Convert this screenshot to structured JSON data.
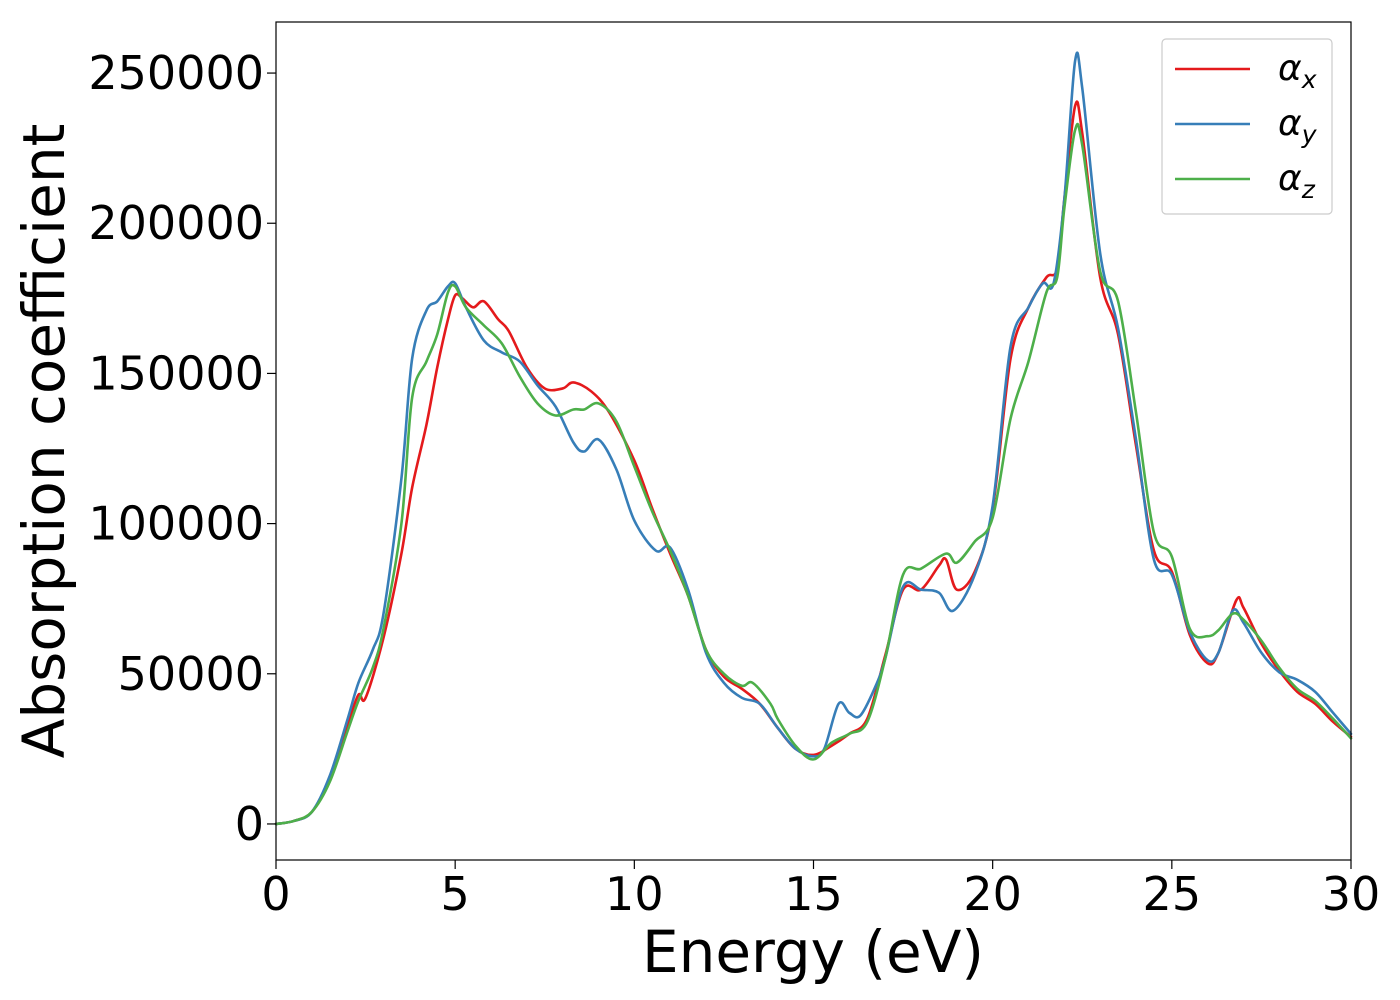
{
  "chart_data": {
    "type": "line",
    "title": "",
    "xlabel": "Energy (eV)",
    "ylabel": "Absorption coefficient",
    "xlim": [
      0,
      30
    ],
    "ylim": [
      -12000,
      267000
    ],
    "x_ticks": [
      0,
      5,
      10,
      15,
      20,
      25,
      30
    ],
    "y_ticks": [
      0,
      50000,
      100000,
      150000,
      200000,
      250000
    ],
    "x_tick_labels": [
      "0",
      "5",
      "10",
      "15",
      "20",
      "25",
      "30"
    ],
    "y_tick_labels": [
      "0",
      "50000",
      "100000",
      "150000",
      "200000",
      "250000"
    ],
    "grid": false,
    "legend_position": "top-right",
    "series": [
      {
        "name": "αx",
        "symbol": "α",
        "subscript": "x",
        "color": "#e41a1c",
        "points": [
          [
            0,
            0
          ],
          [
            0.5,
            1000
          ],
          [
            1,
            4000
          ],
          [
            1.5,
            15000
          ],
          [
            2,
            33000
          ],
          [
            2.3,
            43000
          ],
          [
            2.5,
            42000
          ],
          [
            3,
            62000
          ],
          [
            3.5,
            90000
          ],
          [
            3.8,
            112000
          ],
          [
            4.2,
            133000
          ],
          [
            4.5,
            152000
          ],
          [
            4.8,
            168000
          ],
          [
            5,
            176000
          ],
          [
            5.2,
            175000
          ],
          [
            5.5,
            172000
          ],
          [
            5.8,
            174000
          ],
          [
            6.2,
            168000
          ],
          [
            6.5,
            164000
          ],
          [
            7,
            152000
          ],
          [
            7.5,
            145000
          ],
          [
            8,
            145000
          ],
          [
            8.3,
            147000
          ],
          [
            8.8,
            144000
          ],
          [
            9.3,
            137000
          ],
          [
            10,
            121000
          ],
          [
            10.5,
            105000
          ],
          [
            11,
            90000
          ],
          [
            11.5,
            76000
          ],
          [
            12,
            58000
          ],
          [
            12.5,
            49000
          ],
          [
            13,
            45000
          ],
          [
            13.5,
            40000
          ],
          [
            14,
            32000
          ],
          [
            14.5,
            25000
          ],
          [
            15,
            23000
          ],
          [
            15.5,
            26000
          ],
          [
            16,
            30000
          ],
          [
            16.5,
            35000
          ],
          [
            17,
            56000
          ],
          [
            17.5,
            78000
          ],
          [
            18,
            78000
          ],
          [
            18.5,
            86000
          ],
          [
            18.7,
            88000
          ],
          [
            19,
            78000
          ],
          [
            19.5,
            84000
          ],
          [
            20,
            105000
          ],
          [
            20.5,
            155000
          ],
          [
            21,
            172000
          ],
          [
            21.5,
            182000
          ],
          [
            21.8,
            185000
          ],
          [
            22,
            208000
          ],
          [
            22.3,
            239000
          ],
          [
            22.5,
            230000
          ],
          [
            23,
            182000
          ],
          [
            23.5,
            163000
          ],
          [
            24,
            126000
          ],
          [
            24.5,
            91000
          ],
          [
            25,
            84000
          ],
          [
            25.5,
            63000
          ],
          [
            26,
            53500
          ],
          [
            26.3,
            57000
          ],
          [
            26.8,
            74500
          ],
          [
            27,
            72000
          ],
          [
            27.5,
            60000
          ],
          [
            28,
            51000
          ],
          [
            28.5,
            44000
          ],
          [
            29,
            40000
          ],
          [
            29.5,
            34000
          ],
          [
            30,
            29000
          ]
        ]
      },
      {
        "name": "αy",
        "symbol": "α",
        "subscript": "y",
        "color": "#377eb8",
        "points": [
          [
            0,
            0
          ],
          [
            0.5,
            1000
          ],
          [
            1,
            4000
          ],
          [
            1.5,
            16000
          ],
          [
            2,
            35000
          ],
          [
            2.3,
            47000
          ],
          [
            2.7,
            58000
          ],
          [
            3,
            70000
          ],
          [
            3.5,
            115000
          ],
          [
            3.8,
            155000
          ],
          [
            4.2,
            171000
          ],
          [
            4.5,
            174000
          ],
          [
            4.8,
            179000
          ],
          [
            5,
            180000
          ],
          [
            5.3,
            172000
          ],
          [
            5.8,
            161000
          ],
          [
            6.3,
            157000
          ],
          [
            6.8,
            154000
          ],
          [
            7.3,
            146000
          ],
          [
            7.8,
            139000
          ],
          [
            8.3,
            127000
          ],
          [
            8.6,
            124000
          ],
          [
            9,
            128000
          ],
          [
            9.5,
            118000
          ],
          [
            10,
            101000
          ],
          [
            10.6,
            91000
          ],
          [
            11,
            92000
          ],
          [
            11.5,
            78000
          ],
          [
            12,
            57000
          ],
          [
            12.5,
            47000
          ],
          [
            13,
            42000
          ],
          [
            13.5,
            40000
          ],
          [
            14,
            32000
          ],
          [
            14.5,
            25000
          ],
          [
            15,
            22500
          ],
          [
            15.3,
            25000
          ],
          [
            15.7,
            40000
          ],
          [
            16,
            37000
          ],
          [
            16.3,
            36000
          ],
          [
            16.7,
            45000
          ],
          [
            17,
            55000
          ],
          [
            17.5,
            79000
          ],
          [
            18,
            78000
          ],
          [
            18.5,
            77000
          ],
          [
            18.9,
            71000
          ],
          [
            19.5,
            83000
          ],
          [
            20,
            106000
          ],
          [
            20.5,
            159000
          ],
          [
            21,
            172000
          ],
          [
            21.4,
            180000
          ],
          [
            21.7,
            180000
          ],
          [
            22,
            208000
          ],
          [
            22.3,
            254000
          ],
          [
            22.5,
            245000
          ],
          [
            23,
            190000
          ],
          [
            23.5,
            165000
          ],
          [
            24,
            128000
          ],
          [
            24.5,
            88000
          ],
          [
            25,
            83000
          ],
          [
            25.5,
            64000
          ],
          [
            26,
            54500
          ],
          [
            26.3,
            57000
          ],
          [
            26.7,
            71000
          ],
          [
            27,
            67000
          ],
          [
            27.5,
            57000
          ],
          [
            28,
            50500
          ],
          [
            28.5,
            48000
          ],
          [
            29,
            44000
          ],
          [
            29.5,
            37000
          ],
          [
            30,
            30000
          ]
        ]
      },
      {
        "name": "αz",
        "symbol": "α",
        "subscript": "z",
        "color": "#4daf4a",
        "points": [
          [
            0,
            0
          ],
          [
            0.5,
            1000
          ],
          [
            1,
            4000
          ],
          [
            1.5,
            14000
          ],
          [
            2,
            31000
          ],
          [
            2.3,
            41000
          ],
          [
            2.7,
            52000
          ],
          [
            3,
            65000
          ],
          [
            3.5,
            100000
          ],
          [
            3.8,
            142000
          ],
          [
            4.2,
            154000
          ],
          [
            4.5,
            163000
          ],
          [
            4.8,
            177000
          ],
          [
            5,
            179000
          ],
          [
            5.3,
            172000
          ],
          [
            5.8,
            166000
          ],
          [
            6.3,
            160000
          ],
          [
            6.8,
            149000
          ],
          [
            7.3,
            140000
          ],
          [
            7.8,
            136000
          ],
          [
            8.3,
            138000
          ],
          [
            8.6,
            138000
          ],
          [
            9,
            140000
          ],
          [
            9.5,
            134000
          ],
          [
            10,
            119000
          ],
          [
            10.5,
            104000
          ],
          [
            11,
            91000
          ],
          [
            11.5,
            76000
          ],
          [
            12,
            58000
          ],
          [
            12.5,
            50000
          ],
          [
            13,
            46000
          ],
          [
            13.3,
            47000
          ],
          [
            13.8,
            40000
          ],
          [
            14,
            35000
          ],
          [
            14.5,
            26000
          ],
          [
            15,
            21500
          ],
          [
            15.5,
            27000
          ],
          [
            16,
            30000
          ],
          [
            16.5,
            34000
          ],
          [
            17,
            55000
          ],
          [
            17.5,
            83000
          ],
          [
            18,
            85000
          ],
          [
            18.7,
            90000
          ],
          [
            19,
            87000
          ],
          [
            19.5,
            94000
          ],
          [
            20,
            102000
          ],
          [
            20.5,
            135000
          ],
          [
            21,
            154000
          ],
          [
            21.5,
            177000
          ],
          [
            21.8,
            182000
          ],
          [
            22,
            205000
          ],
          [
            22.3,
            231000
          ],
          [
            22.5,
            226000
          ],
          [
            23,
            184000
          ],
          [
            23.5,
            174000
          ],
          [
            24,
            137000
          ],
          [
            24.5,
            97000
          ],
          [
            25,
            89000
          ],
          [
            25.5,
            65000
          ],
          [
            26,
            62500
          ],
          [
            26.3,
            64500
          ],
          [
            26.7,
            70000
          ],
          [
            27,
            68000
          ],
          [
            27.5,
            61000
          ],
          [
            28,
            52000
          ],
          [
            28.5,
            45000
          ],
          [
            29,
            41000
          ],
          [
            29.5,
            35000
          ],
          [
            30,
            28500
          ]
        ]
      }
    ]
  }
}
